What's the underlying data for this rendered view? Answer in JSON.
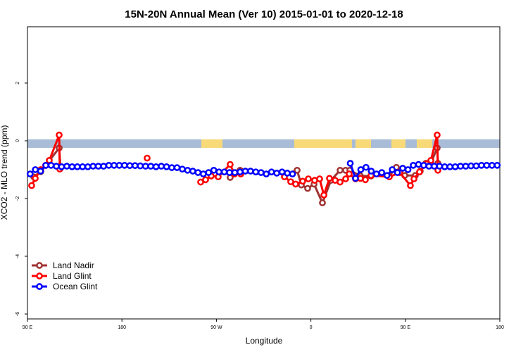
{
  "chart_data": {
    "type": "line",
    "title": "15N-20N Annual Mean (Ver 10)   2015-01-01 to 2020-12-18",
    "x_label": "Longitude",
    "y_label": "XCO2 - MLO trend (ppm)",
    "xlim": [
      90,
      540
    ],
    "xticks": [
      {
        "value": 90,
        "label": "90 E"
      },
      {
        "value": 180,
        "label": "180"
      },
      {
        "value": 270,
        "label": "90 W"
      },
      {
        "value": 360,
        "label": "0"
      },
      {
        "value": 450,
        "label": "90 E"
      },
      {
        "value": 540,
        "label": "180"
      }
    ],
    "ylim": [
      -6.17,
      3.95
    ],
    "yticks": [
      -6,
      -4,
      -2,
      0,
      2
    ],
    "legend": "bottom-left",
    "series": [
      {
        "name": "Land Nadir",
        "color": "#a03232",
        "x": [
          96.0,
          102.7,
          107.4,
          120.2,
          121.5,
          null,
          283.1,
          292.5,
          null,
          334.8,
          346.9,
          350.9,
          356.9,
          363.0,
          371.0,
          379.1,
          387.8,
          393.1,
          397.1,
          407.2,
          417.3,
          434.7,
          441.4,
          449.4,
          459.5,
          464.2,
          469.5,
          474.3,
          480.3,
          481.0
        ],
        "values": [
          -1.25,
          -1.07,
          -0.85,
          -0.25,
          -0.93,
          null,
          -1.27,
          -1.02,
          null,
          -1.17,
          -1.02,
          -1.53,
          -1.65,
          -1.5,
          -2.15,
          -1.37,
          -1.02,
          -1.02,
          -1.02,
          -1.22,
          -1.22,
          -1.22,
          -0.92,
          -1.2,
          -1.2,
          -1.05,
          -0.78,
          -0.78,
          -0.25,
          -0.78
        ]
      },
      {
        "name": "Land Glint",
        "color": "#ff0000",
        "x": [
          94.0,
          97.4,
          102.7,
          107.4,
          110.8,
          120.2,
          120.8,
          null,
          204.0,
          null,
          255.0,
          259.7,
          265.0,
          271.7,
          283.1,
          287.2,
          293.2,
          null,
          334.8,
          340.8,
          345.5,
          352.2,
          357.6,
          363.6,
          368.3,
          372.4,
          377.7,
          383.1,
          387.8,
          393.1,
          396.5,
          402.5,
          407.2,
          411.9,
          417.3,
          434.7,
          444.7,
          454.8,
          458.2,
          463.5,
          470.2,
          474.3,
          480.3,
          481.0
        ],
        "values": [
          -1.55,
          -1.3,
          -1.0,
          -0.85,
          -0.68,
          0.2,
          -0.98,
          null,
          -0.6,
          null,
          -1.43,
          -1.35,
          -1.22,
          -1.25,
          -0.82,
          -1.15,
          -1.15,
          null,
          -1.25,
          -1.42,
          -1.5,
          -1.4,
          -1.32,
          -1.37,
          -1.32,
          -1.88,
          -1.3,
          -1.37,
          -1.43,
          -1.32,
          -1.15,
          -1.32,
          -1.3,
          -1.35,
          -1.2,
          -1.25,
          -1.1,
          -1.55,
          -1.32,
          -1.08,
          -0.8,
          -0.68,
          0.2,
          -1.02
        ]
      },
      {
        "name": "Ocean Glint",
        "color": "#0000ff",
        "x": [
          92.5,
          97.5,
          102.5,
          107.5,
          112.5,
          117.5,
          122.5,
          127.5,
          132.5,
          137.5,
          142.5,
          147.5,
          152.5,
          157.5,
          162.5,
          167.5,
          172.5,
          177.5,
          182.5,
          187.5,
          192.5,
          197.5,
          202.5,
          207.5,
          212.5,
          217.5,
          222.5,
          227.5,
          232.5,
          237.5,
          242.5,
          247.5,
          252.5,
          257.5,
          262.5,
          267.5,
          272.5,
          277.5,
          282.5,
          287.5,
          292.5,
          297.5,
          302.5,
          307.5,
          312.5,
          317.5,
          322.5,
          327.5,
          332.5,
          337.5,
          342.5,
          null,
          397.5,
          402.5,
          407.5,
          412.5,
          417.5,
          422.5,
          427.5,
          432.5,
          437.5,
          442.5,
          447.5,
          452.5,
          457.5,
          462.5,
          467.5,
          472.5,
          477.5,
          482.5,
          487.5,
          492.5,
          497.5,
          502.5,
          507.5,
          512.5,
          517.5,
          522.5,
          527.5,
          532.5,
          537.5
        ],
        "values": [
          -1.15,
          -1.0,
          -1.05,
          -0.85,
          -0.85,
          -0.88,
          -0.9,
          -0.88,
          -0.9,
          -0.9,
          -0.9,
          -0.9,
          -0.88,
          -0.88,
          -0.88,
          -0.85,
          -0.85,
          -0.85,
          -0.85,
          -0.86,
          -0.86,
          -0.87,
          -0.88,
          -0.88,
          -0.9,
          -0.88,
          -0.9,
          -0.93,
          -0.93,
          -0.98,
          -1.02,
          -1.05,
          -1.1,
          -1.15,
          -1.1,
          -1.02,
          -1.08,
          -1.08,
          -1.1,
          -1.1,
          -1.08,
          -1.05,
          -1.05,
          -1.08,
          -1.1,
          -1.15,
          -1.08,
          -1.12,
          -1.08,
          -1.12,
          -1.15,
          null,
          -0.78,
          -1.3,
          -1.0,
          -0.92,
          -1.05,
          -1.15,
          -1.1,
          -1.2,
          -1.0,
          -1.1,
          -0.95,
          -1.0,
          -0.85,
          -0.82,
          -0.85,
          -0.88,
          -0.88,
          -0.88,
          -0.9,
          -0.9,
          -0.9,
          -0.88,
          -0.88,
          -0.87,
          -0.87,
          -0.85,
          -0.85,
          -0.85,
          -0.85
        ]
      }
    ]
  }
}
